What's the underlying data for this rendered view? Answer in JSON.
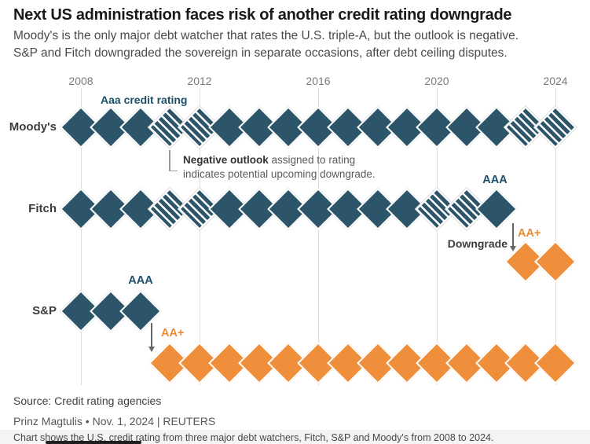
{
  "header": {
    "title": "Next US administration faces risk of another credit rating downgrade",
    "subtitle_line1": "Moody's is the only major debt watcher that rates the U.S. triple-A, but the outlook is negative.",
    "subtitle_line2": "S&P and Fitch downgraded the sovereign in separate occasions, after debt ceiling disputes."
  },
  "annotations": {
    "moodys_rating_label": "Aaa credit rating",
    "note_bold": "Negative outlook",
    "note_rest": " assigned to rating",
    "note_line2": "indicates potential upcoming downgrade.",
    "fitch_aaa": "AAA",
    "fitch_aa_plus": "AA+",
    "downgrade": "Downgrade",
    "sp_aaa": "AAA",
    "sp_aa_plus": "AA+"
  },
  "colors": {
    "top_rating_blue": "#2d5569",
    "downgraded_orange": "#ef8e3b",
    "label_blue": "#1b4f68",
    "label_orange": "#ee8b31"
  },
  "chart_data": {
    "type": "scatter",
    "x": [
      2008,
      2009,
      2010,
      2011,
      2012,
      2013,
      2014,
      2015,
      2016,
      2017,
      2018,
      2019,
      2020,
      2021,
      2022,
      2023,
      2024
    ],
    "x_tick_labels": [
      "2008",
      "2012",
      "2016",
      "2020",
      "2024"
    ],
    "series": [
      {
        "name": "Moody's",
        "ratings": [
          "Aaa",
          "Aaa",
          "Aaa",
          "Aaa",
          "Aaa",
          "Aaa",
          "Aaa",
          "Aaa",
          "Aaa",
          "Aaa",
          "Aaa",
          "Aaa",
          "Aaa",
          "Aaa",
          "Aaa",
          "Aaa",
          "Aaa"
        ],
        "negative_outlook": [
          false,
          false,
          false,
          true,
          true,
          false,
          false,
          false,
          false,
          false,
          false,
          false,
          false,
          false,
          false,
          true,
          true
        ]
      },
      {
        "name": "Fitch",
        "ratings": [
          "AAA",
          "AAA",
          "AAA",
          "AAA",
          "AAA",
          "AAA",
          "AAA",
          "AAA",
          "AAA",
          "AAA",
          "AAA",
          "AAA",
          "AAA",
          "AAA",
          "AAA",
          "AA+",
          "AA+"
        ],
        "negative_outlook": [
          false,
          false,
          false,
          true,
          true,
          false,
          false,
          false,
          false,
          false,
          false,
          false,
          true,
          true,
          false,
          false,
          false
        ]
      },
      {
        "name": "S&P",
        "ratings": [
          "AAA",
          "AAA",
          "AAA",
          "AA+",
          "AA+",
          "AA+",
          "AA+",
          "AA+",
          "AA+",
          "AA+",
          "AA+",
          "AA+",
          "AA+",
          "AA+",
          "AA+",
          "AA+",
          "AA+"
        ],
        "negative_outlook": [
          false,
          false,
          false,
          false,
          false,
          false,
          false,
          false,
          false,
          false,
          false,
          false,
          false,
          false,
          false,
          false,
          false
        ]
      }
    ]
  },
  "footer": {
    "source": "Source: Credit rating agencies",
    "byline": "Prinz Magtulis • Nov. 1, 2024 | REUTERS",
    "caption": "Chart shows the U.S. credit rating from three major debt watchers, Fitch, S&P and Moody's from 2008 to 2024."
  }
}
